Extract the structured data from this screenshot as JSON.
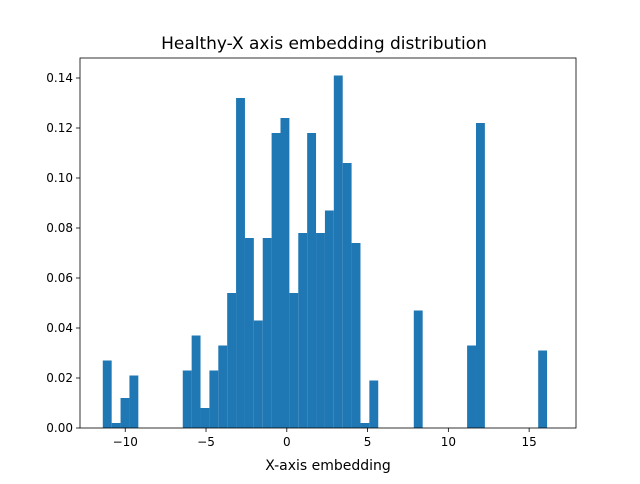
{
  "chart_data": {
    "type": "bar",
    "title": "Healthy-X axis embedding distribution",
    "xlabel": "X-axis embedding",
    "ylabel": "",
    "xlim": [
      -12.8,
      17.9
    ],
    "ylim": [
      0,
      0.148
    ],
    "xticks": [
      {
        "value": -10,
        "label": "−10"
      },
      {
        "value": -5,
        "label": "−5"
      },
      {
        "value": 0,
        "label": "0"
      },
      {
        "value": 5,
        "label": "5"
      },
      {
        "value": 10,
        "label": "10"
      },
      {
        "value": 15,
        "label": "15"
      }
    ],
    "yticks": [
      {
        "value": 0,
        "label": "0.00"
      },
      {
        "value": 0.02,
        "label": "0.02"
      },
      {
        "value": 0.04,
        "label": "0.04"
      },
      {
        "value": 0.06,
        "label": "0.06"
      },
      {
        "value": 0.08,
        "label": "0.08"
      },
      {
        "value": 0.1,
        "label": "0.10"
      },
      {
        "value": 0.12,
        "label": "0.12"
      },
      {
        "value": 0.14,
        "label": "0.14"
      }
    ],
    "bar_color": "#1f77b4",
    "bins": [
      {
        "x0": -11.39,
        "x1": -10.84,
        "value": 0.027
      },
      {
        "x0": -10.84,
        "x1": -10.29,
        "value": 0.002
      },
      {
        "x0": -10.29,
        "x1": -9.74,
        "value": 0.012
      },
      {
        "x0": -9.74,
        "x1": -9.19,
        "value": 0.021
      },
      {
        "x0": -6.44,
        "x1": -5.89,
        "value": 0.023
      },
      {
        "x0": -5.89,
        "x1": -5.34,
        "value": 0.037
      },
      {
        "x0": -5.34,
        "x1": -4.79,
        "value": 0.008
      },
      {
        "x0": -4.79,
        "x1": -4.24,
        "value": 0.023
      },
      {
        "x0": -4.24,
        "x1": -3.69,
        "value": 0.033
      },
      {
        "x0": -3.69,
        "x1": -3.14,
        "value": 0.054
      },
      {
        "x0": -3.14,
        "x1": -2.59,
        "value": 0.132
      },
      {
        "x0": -2.59,
        "x1": -2.04,
        "value": 0.076
      },
      {
        "x0": -2.04,
        "x1": -1.49,
        "value": 0.043
      },
      {
        "x0": -1.49,
        "x1": -0.94,
        "value": 0.076
      },
      {
        "x0": -0.94,
        "x1": -0.39,
        "value": 0.118
      },
      {
        "x0": -0.39,
        "x1": 0.16,
        "value": 0.124
      },
      {
        "x0": 0.16,
        "x1": 0.71,
        "value": 0.054
      },
      {
        "x0": 0.71,
        "x1": 1.26,
        "value": 0.078
      },
      {
        "x0": 1.26,
        "x1": 1.81,
        "value": 0.118
      },
      {
        "x0": 1.81,
        "x1": 2.36,
        "value": 0.078
      },
      {
        "x0": 2.36,
        "x1": 2.91,
        "value": 0.087
      },
      {
        "x0": 2.91,
        "x1": 3.46,
        "value": 0.141
      },
      {
        "x0": 3.46,
        "x1": 4.01,
        "value": 0.106
      },
      {
        "x0": 4.01,
        "x1": 4.56,
        "value": 0.074
      },
      {
        "x0": 4.56,
        "x1": 5.11,
        "value": 0.002
      },
      {
        "x0": 5.11,
        "x1": 5.66,
        "value": 0.019
      },
      {
        "x0": 7.86,
        "x1": 8.41,
        "value": 0.047
      },
      {
        "x0": 11.16,
        "x1": 11.71,
        "value": 0.033
      },
      {
        "x0": 11.71,
        "x1": 12.26,
        "value": 0.122
      },
      {
        "x0": 15.56,
        "x1": 16.11,
        "value": 0.031
      }
    ]
  }
}
